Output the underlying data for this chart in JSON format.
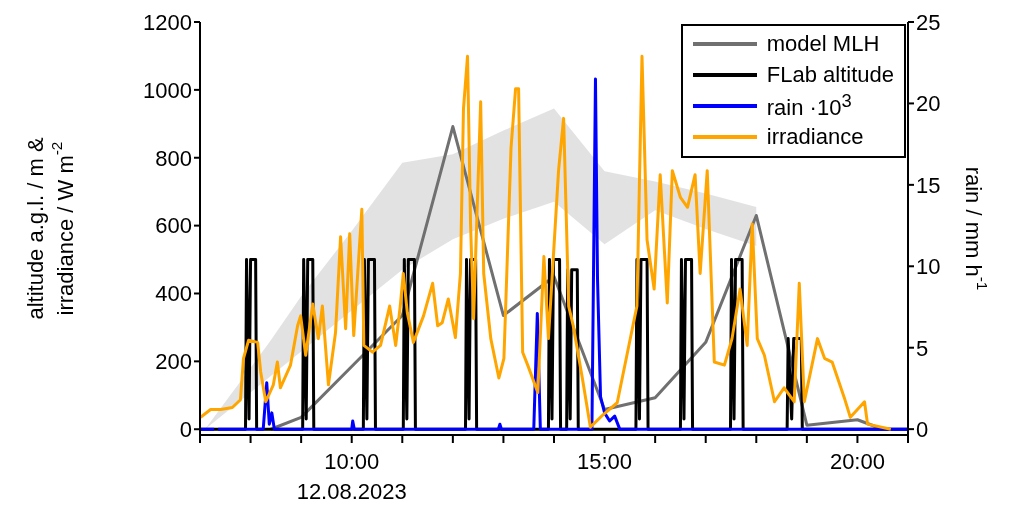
{
  "chart_data": {
    "type": "line",
    "ylabel": "altitude a.g.l. / m &\nirradiance / W m$^{-2}$",
    "y2label": "rain / mm h$^{-1}$",
    "annotations": [
      "12.08.2023"
    ],
    "xlim": [
      7,
      21
    ],
    "xticks": [
      {
        "value": 7,
        "label": null
      },
      {
        "value": 8,
        "label": null
      },
      {
        "value": 9,
        "label": null
      },
      {
        "value": 10,
        "label": "10:00"
      },
      {
        "value": 11,
        "label": null
      },
      {
        "value": 12,
        "label": null
      },
      {
        "value": 13,
        "label": null
      },
      {
        "value": 14,
        "label": null
      },
      {
        "value": 15,
        "label": "15:00"
      },
      {
        "value": 16,
        "label": null
      },
      {
        "value": 17,
        "label": null
      },
      {
        "value": 18,
        "label": null
      },
      {
        "value": 19,
        "label": null
      },
      {
        "value": 20,
        "label": "20:00"
      },
      {
        "value": 21,
        "label": null
      }
    ],
    "ylim": [
      -17,
      1200
    ],
    "yticks": [
      0,
      200,
      400,
      600,
      800,
      1000,
      1200
    ],
    "y2lim": [
      -0.36,
      25
    ],
    "y2ticks": [
      0,
      5,
      10,
      15,
      20,
      25
    ],
    "legend": "top right",
    "grid": false,
    "line_style": "solid",
    "series": [
      {
        "name": "model MLH",
        "color": "#707070",
        "x": [
          7.1,
          8,
          8.4,
          9,
          10,
          11,
          12,
          13,
          14,
          15,
          16,
          17,
          18,
          19,
          20,
          20.5
        ],
        "values": [
          null,
          null,
          0,
          35,
          185,
          335,
          892,
          335,
          450,
          58,
          93,
          256,
          630,
          12,
          28,
          0
        ],
        "lower": [
          0,
          108,
          157,
          229,
          350,
          470,
          560,
          620,
          670,
          545,
          645,
          590,
          540,
          null,
          null,
          null
        ],
        "upper": [
          0,
          181,
          262,
          392,
          584,
          785,
          810,
          880,
          945,
          760,
          730,
          695,
          655,
          null,
          null,
          null
        ]
      },
      {
        "name": "FLab altitude",
        "color": "#000000",
        "x": [
          7.0,
          7.9,
          7.92,
          7.97,
          8.0,
          8.1,
          8.12,
          9.03,
          9.05,
          9.1,
          9.13,
          9.23,
          9.25,
          10.23,
          10.25,
          10.3,
          10.33,
          10.45,
          10.47,
          11.02,
          11.04,
          11.09,
          11.12,
          11.24,
          11.26,
          12.25,
          12.27,
          12.32,
          12.35,
          12.45,
          12.47,
          13.89,
          13.91,
          13.96,
          13.99,
          14.11,
          14.13,
          14.25,
          14.27,
          14.32,
          14.35,
          14.46,
          14.48,
          15.62,
          15.64,
          15.69,
          15.72,
          15.84,
          15.86,
          16.5,
          16.52,
          16.57,
          16.6,
          16.72,
          16.74,
          17.49,
          17.51,
          17.56,
          17.59,
          17.72,
          17.74,
          18.61,
          18.63,
          18.7,
          18.74,
          18.89,
          18.91,
          21.0
        ],
        "values": [
          0,
          0,
          500,
          30,
          500,
          500,
          0,
          0,
          500,
          30,
          500,
          500,
          0,
          0,
          500,
          30,
          500,
          500,
          0,
          0,
          500,
          30,
          500,
          500,
          0,
          0,
          500,
          30,
          500,
          500,
          0,
          0,
          500,
          30,
          500,
          500,
          0,
          0,
          470,
          30,
          470,
          470,
          0,
          0,
          500,
          30,
          500,
          500,
          0,
          0,
          500,
          30,
          500,
          500,
          0,
          0,
          500,
          30,
          500,
          500,
          0,
          0,
          267,
          30,
          267,
          267,
          0,
          0
        ]
      },
      {
        "name": "rain ·10$^{3}$",
        "color": "#0000ff",
        "axis": "y2",
        "x": [
          7.0,
          7.28,
          7.3,
          7.36,
          8.25,
          8.32,
          8.37,
          8.42,
          8.47,
          10.0,
          10.02,
          10.05,
          12.9,
          12.93,
          12.96,
          13.6,
          13.67,
          13.73,
          14.75,
          14.82,
          14.86,
          14.92,
          15.0,
          15.1,
          15.2,
          15.3,
          21.0
        ],
        "values": [
          0,
          0,
          null,
          0,
          0,
          2.85,
          0.3,
          1.0,
          0,
          0,
          0.5,
          0,
          0,
          0.3,
          0,
          0,
          7.1,
          0,
          0,
          21.5,
          9.3,
          2,
          1,
          0.5,
          0.8,
          0,
          0
        ]
      },
      {
        "name": "irradiance",
        "color": "#ffa500",
        "x": [
          7.01,
          7.21,
          7.41,
          7.64,
          7.8,
          7.86,
          7.96,
          8.14,
          8.2,
          8.3,
          8.45,
          8.53,
          8.59,
          8.79,
          8.93,
          8.99,
          9.09,
          9.23,
          9.34,
          9.42,
          9.54,
          9.68,
          9.78,
          9.88,
          9.96,
          10.04,
          10.2,
          10.24,
          10.41,
          10.57,
          10.75,
          10.87,
          10.96,
          11.02,
          11.1,
          11.22,
          11.42,
          11.6,
          11.7,
          11.79,
          11.91,
          12.05,
          12.15,
          12.21,
          12.29,
          12.35,
          12.41,
          12.55,
          12.61,
          12.75,
          12.91,
          13.01,
          13.15,
          13.24,
          13.3,
          13.38,
          13.48,
          13.68,
          13.8,
          13.89,
          14.09,
          14.19,
          14.29,
          14.38,
          14.56,
          14.72,
          14.98,
          15.25,
          15.64,
          15.74,
          15.84,
          15.98,
          16.1,
          16.24,
          16.34,
          16.5,
          16.64,
          16.79,
          16.89,
          17.03,
          17.17,
          17.37,
          17.52,
          17.68,
          17.82,
          17.92,
          18.02,
          18.16,
          18.36,
          18.55,
          18.75,
          18.85,
          18.95,
          19.21,
          19.35,
          19.5,
          19.74,
          19.86,
          20.14,
          20.2,
          20.66
        ],
        "values": [
          35,
          58,
          58,
          64,
          87,
          209,
          262,
          256,
          169,
          81,
          131,
          198,
          122,
          189,
          305,
          334,
          218,
          369,
          267,
          363,
          131,
          285,
          567,
          296,
          576,
          276,
          648,
          247,
          227,
          247,
          363,
          247,
          363,
          459,
          343,
          256,
          334,
          430,
          305,
          314,
          384,
          270,
          459,
          945,
          1099,
          605,
          326,
          965,
          459,
          267,
          151,
          209,
          828,
          1003,
          1003,
          227,
          189,
          108,
          509,
          267,
          762,
          916,
          363,
          305,
          151,
          6,
          44,
          78,
          363,
          1099,
          558,
          413,
          750,
          372,
          762,
          683,
          654,
          750,
          459,
          762,
          198,
          189,
          267,
          413,
          247,
          605,
          267,
          218,
          81,
          122,
          81,
          430,
          81,
          267,
          209,
          198,
          93,
          35,
          81,
          15,
          0
        ]
      }
    ]
  }
}
